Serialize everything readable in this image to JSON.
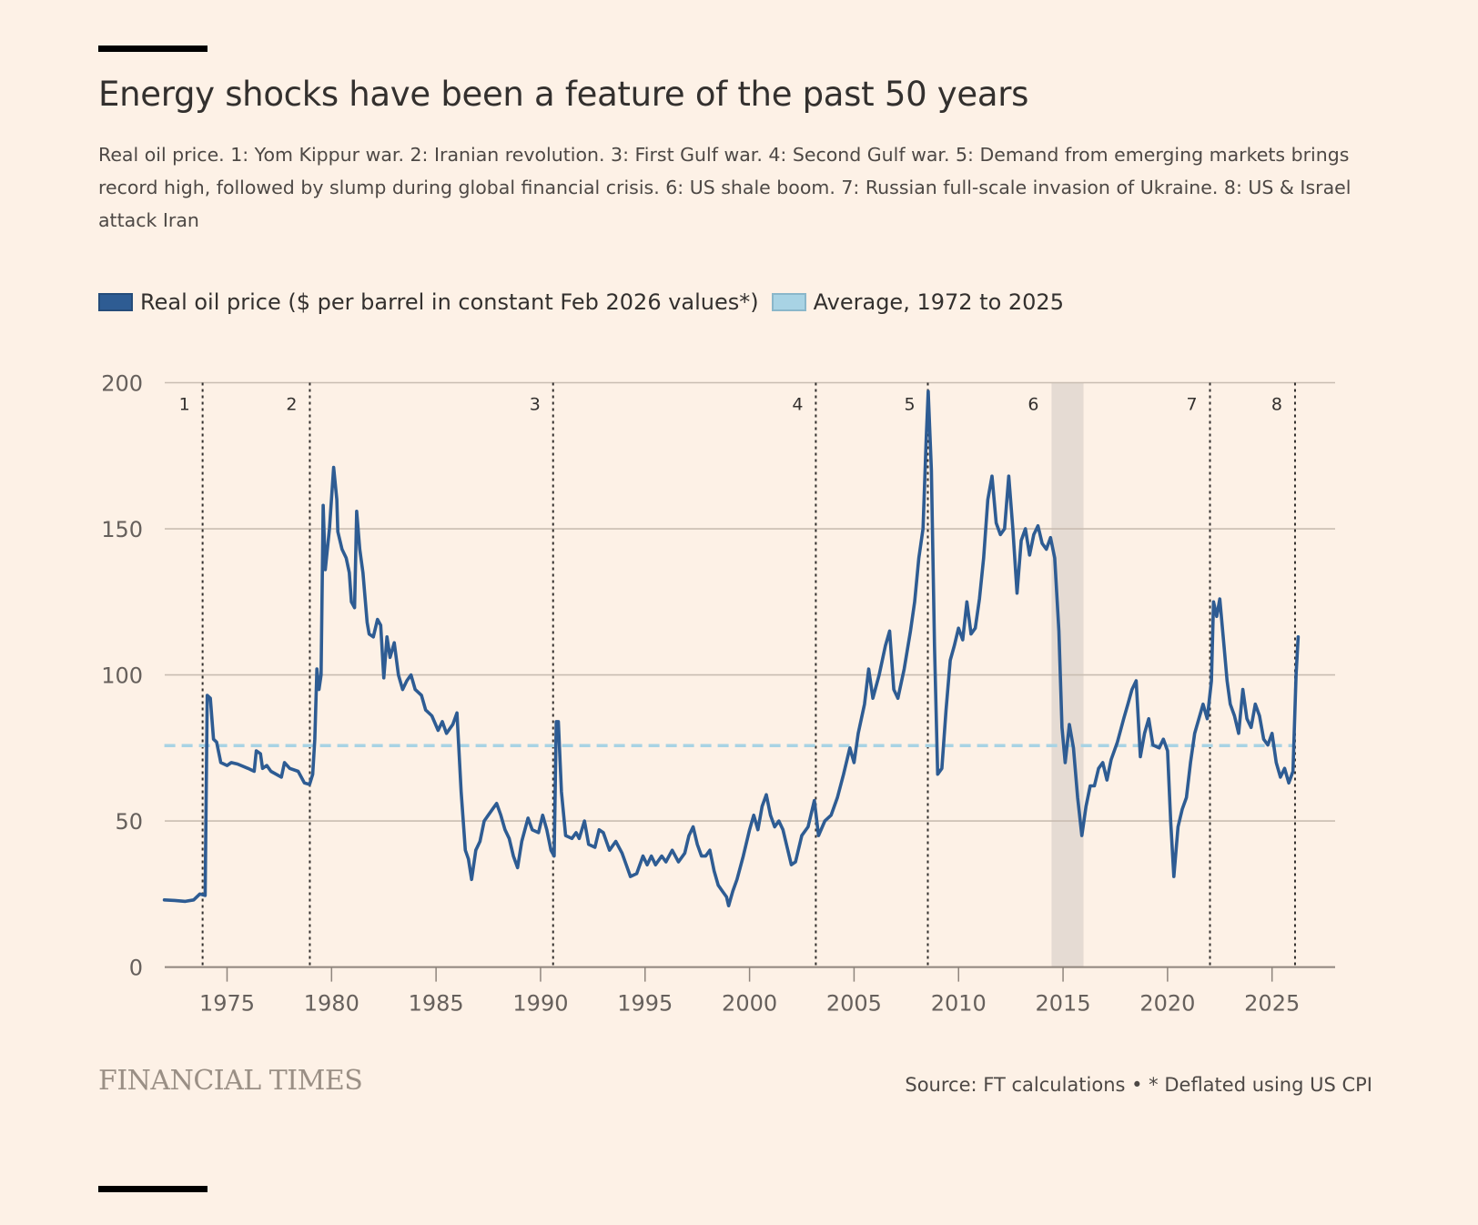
{
  "header": {
    "title": "Energy shocks have been a feature of the past 50 years",
    "subtitle": "Real oil price. 1: Yom Kippur war. 2: Iranian revolution. 3: First Gulf war. 4: Second Gulf war. 5: Demand from emerging markets brings record high, followed by slump during global financial crisis. 6: US shale boom. 7: Russian full-scale invasion of Ukraine. 8: US & Israel attack Iran"
  },
  "legend": {
    "items": [
      {
        "label": "Real oil price ($ per barrel in constant Feb 2026 values*)",
        "color": "#2e5c93"
      },
      {
        "label": "Average, 1972 to 2025",
        "color": "#a8d3e4"
      }
    ]
  },
  "footer": {
    "brand": "FINANCIAL TIMES",
    "source": "Source: FT calculations • * Deflated using US CPI"
  },
  "colors": {
    "background": "#fdf1e6",
    "line": "#2e5c93",
    "average": "#a8d3e4",
    "grid": "#c9bdb2",
    "axis": "#8f857d",
    "event_line": "#33302e",
    "shade": "#e5dbd3"
  },
  "chart_data": {
    "type": "line",
    "title": "Energy shocks have been a feature of the past 50 years",
    "xlabel": "",
    "ylabel": "",
    "xlim": [
      1972,
      2028
    ],
    "ylim": [
      0,
      200
    ],
    "yticks": [
      0,
      50,
      100,
      150,
      200
    ],
    "xticks": [
      1975,
      1980,
      1985,
      1990,
      1995,
      2000,
      2005,
      2010,
      2015,
      2020,
      2025
    ],
    "grid": true,
    "legend_position": "top-left",
    "average": {
      "name": "Average, 1972 to 2025",
      "value": 75.8
    },
    "events": [
      {
        "label": "1",
        "x": 1973.83
      },
      {
        "label": "2",
        "x": 1978.96
      },
      {
        "label": "3",
        "x": 1990.6
      },
      {
        "label": "4",
        "x": 2003.17
      },
      {
        "label": "5",
        "x": 2008.53
      },
      {
        "label": "7",
        "x": 2022.03
      },
      {
        "label": "8",
        "x": 2026.1
      }
    ],
    "shaded_periods": [
      {
        "label": "6",
        "start": 2014.45,
        "end": 2015.98
      }
    ],
    "series": [
      {
        "name": "Real oil price ($ per barrel in constant Feb 2026 values*)",
        "points": [
          [
            1972.0,
            23
          ],
          [
            1972.5,
            22.8
          ],
          [
            1973.0,
            22.5
          ],
          [
            1973.4,
            23
          ],
          [
            1973.7,
            25
          ],
          [
            1973.95,
            24.5
          ],
          [
            1974.05,
            93
          ],
          [
            1974.2,
            92
          ],
          [
            1974.35,
            78
          ],
          [
            1974.5,
            77
          ],
          [
            1974.7,
            70
          ],
          [
            1975.0,
            69
          ],
          [
            1975.2,
            70
          ],
          [
            1975.5,
            69.5
          ],
          [
            1976.0,
            68
          ],
          [
            1976.3,
            67
          ],
          [
            1976.4,
            74
          ],
          [
            1976.6,
            73
          ],
          [
            1976.7,
            68
          ],
          [
            1976.9,
            69
          ],
          [
            1977.1,
            67
          ],
          [
            1977.6,
            65
          ],
          [
            1977.75,
            70
          ],
          [
            1978.0,
            68
          ],
          [
            1978.4,
            67
          ],
          [
            1978.7,
            63
          ],
          [
            1978.95,
            62.5
          ],
          [
            1979.1,
            66
          ],
          [
            1979.2,
            78
          ],
          [
            1979.3,
            102
          ],
          [
            1979.4,
            95
          ],
          [
            1979.5,
            100
          ],
          [
            1979.6,
            158
          ],
          [
            1979.7,
            136
          ],
          [
            1979.9,
            150
          ],
          [
            1980.1,
            171
          ],
          [
            1980.25,
            160
          ],
          [
            1980.3,
            149
          ],
          [
            1980.5,
            143
          ],
          [
            1980.7,
            140
          ],
          [
            1980.85,
            135
          ],
          [
            1980.95,
            125
          ],
          [
            1981.1,
            123
          ],
          [
            1981.2,
            156
          ],
          [
            1981.35,
            143
          ],
          [
            1981.5,
            135
          ],
          [
            1981.7,
            118
          ],
          [
            1981.8,
            114
          ],
          [
            1982.0,
            113
          ],
          [
            1982.2,
            119
          ],
          [
            1982.35,
            117
          ],
          [
            1982.5,
            99
          ],
          [
            1982.65,
            113
          ],
          [
            1982.8,
            106
          ],
          [
            1983.0,
            111
          ],
          [
            1983.2,
            100
          ],
          [
            1983.4,
            95
          ],
          [
            1983.6,
            98
          ],
          [
            1983.8,
            100
          ],
          [
            1984.0,
            95
          ],
          [
            1984.3,
            93
          ],
          [
            1984.5,
            88
          ],
          [
            1984.8,
            86
          ],
          [
            1985.1,
            81
          ],
          [
            1985.3,
            84
          ],
          [
            1985.5,
            80
          ],
          [
            1985.8,
            83
          ],
          [
            1986.0,
            87
          ],
          [
            1986.2,
            60
          ],
          [
            1986.4,
            40
          ],
          [
            1986.55,
            37
          ],
          [
            1986.7,
            30
          ],
          [
            1986.9,
            40
          ],
          [
            1987.1,
            43
          ],
          [
            1987.3,
            50
          ],
          [
            1987.5,
            52
          ],
          [
            1987.7,
            54
          ],
          [
            1987.9,
            56
          ],
          [
            1988.1,
            52
          ],
          [
            1988.3,
            47
          ],
          [
            1988.5,
            44
          ],
          [
            1988.7,
            38
          ],
          [
            1988.9,
            34
          ],
          [
            1989.1,
            43
          ],
          [
            1989.4,
            51
          ],
          [
            1989.6,
            47
          ],
          [
            1989.9,
            46
          ],
          [
            1990.1,
            52
          ],
          [
            1990.3,
            47
          ],
          [
            1990.5,
            40
          ],
          [
            1990.65,
            38
          ],
          [
            1990.75,
            84
          ],
          [
            1990.85,
            84
          ],
          [
            1991.0,
            60
          ],
          [
            1991.2,
            45
          ],
          [
            1991.5,
            44
          ],
          [
            1991.7,
            46
          ],
          [
            1991.85,
            44
          ],
          [
            1992.1,
            50
          ],
          [
            1992.3,
            42
          ],
          [
            1992.6,
            41
          ],
          [
            1992.8,
            47
          ],
          [
            1993.0,
            46
          ],
          [
            1993.3,
            40
          ],
          [
            1993.6,
            43
          ],
          [
            1993.9,
            39
          ],
          [
            1994.1,
            35
          ],
          [
            1994.3,
            31
          ],
          [
            1994.6,
            32
          ],
          [
            1994.9,
            38
          ],
          [
            1995.1,
            35
          ],
          [
            1995.3,
            38
          ],
          [
            1995.5,
            35
          ],
          [
            1995.8,
            38
          ],
          [
            1996.0,
            36
          ],
          [
            1996.3,
            40
          ],
          [
            1996.6,
            36
          ],
          [
            1996.9,
            39
          ],
          [
            1997.1,
            45
          ],
          [
            1997.3,
            48
          ],
          [
            1997.5,
            42
          ],
          [
            1997.7,
            38
          ],
          [
            1997.9,
            38
          ],
          [
            1998.1,
            40
          ],
          [
            1998.3,
            33
          ],
          [
            1998.5,
            28
          ],
          [
            1998.7,
            26
          ],
          [
            1998.9,
            24
          ],
          [
            1999.0,
            21
          ],
          [
            1999.2,
            26
          ],
          [
            1999.4,
            30
          ],
          [
            1999.7,
            38
          ],
          [
            2000.0,
            47
          ],
          [
            2000.2,
            52
          ],
          [
            2000.4,
            47
          ],
          [
            2000.6,
            55
          ],
          [
            2000.8,
            59
          ],
          [
            2001.0,
            52
          ],
          [
            2001.2,
            48
          ],
          [
            2001.4,
            50
          ],
          [
            2001.6,
            47
          ],
          [
            2001.8,
            41
          ],
          [
            2002.0,
            35
          ],
          [
            2002.2,
            36
          ],
          [
            2002.5,
            45
          ],
          [
            2002.8,
            48
          ],
          [
            2003.1,
            57
          ],
          [
            2003.3,
            45
          ],
          [
            2003.6,
            50
          ],
          [
            2003.9,
            52
          ],
          [
            2004.2,
            58
          ],
          [
            2004.5,
            66
          ],
          [
            2004.8,
            75
          ],
          [
            2005.0,
            70
          ],
          [
            2005.2,
            80
          ],
          [
            2005.5,
            90
          ],
          [
            2005.7,
            102
          ],
          [
            2005.9,
            92
          ],
          [
            2006.2,
            100
          ],
          [
            2006.5,
            110
          ],
          [
            2006.7,
            115
          ],
          [
            2006.9,
            95
          ],
          [
            2007.1,
            92
          ],
          [
            2007.4,
            102
          ],
          [
            2007.7,
            115
          ],
          [
            2007.9,
            125
          ],
          [
            2008.1,
            140
          ],
          [
            2008.3,
            150
          ],
          [
            2008.45,
            180
          ],
          [
            2008.55,
            197
          ],
          [
            2008.7,
            170
          ],
          [
            2008.85,
            110
          ],
          [
            2009.0,
            66
          ],
          [
            2009.2,
            68
          ],
          [
            2009.4,
            88
          ],
          [
            2009.6,
            105
          ],
          [
            2009.8,
            110
          ],
          [
            2010.0,
            116
          ],
          [
            2010.2,
            112
          ],
          [
            2010.4,
            125
          ],
          [
            2010.6,
            114
          ],
          [
            2010.8,
            116
          ],
          [
            2011.0,
            126
          ],
          [
            2011.2,
            140
          ],
          [
            2011.4,
            160
          ],
          [
            2011.6,
            168
          ],
          [
            2011.8,
            152
          ],
          [
            2012.0,
            148
          ],
          [
            2012.2,
            150
          ],
          [
            2012.4,
            168
          ],
          [
            2012.6,
            150
          ],
          [
            2012.8,
            128
          ],
          [
            2013.0,
            146
          ],
          [
            2013.2,
            150
          ],
          [
            2013.4,
            141
          ],
          [
            2013.6,
            148
          ],
          [
            2013.8,
            151
          ],
          [
            2014.0,
            145
          ],
          [
            2014.2,
            143
          ],
          [
            2014.4,
            147
          ],
          [
            2014.6,
            140
          ],
          [
            2014.8,
            115
          ],
          [
            2014.95,
            82
          ],
          [
            2015.1,
            70
          ],
          [
            2015.3,
            83
          ],
          [
            2015.5,
            75
          ],
          [
            2015.7,
            58
          ],
          [
            2015.9,
            45
          ],
          [
            2016.1,
            55
          ],
          [
            2016.3,
            62
          ],
          [
            2016.5,
            62
          ],
          [
            2016.7,
            68
          ],
          [
            2016.9,
            70
          ],
          [
            2017.1,
            64
          ],
          [
            2017.3,
            71
          ],
          [
            2017.6,
            77
          ],
          [
            2017.9,
            85
          ],
          [
            2018.1,
            90
          ],
          [
            2018.3,
            95
          ],
          [
            2018.5,
            98
          ],
          [
            2018.7,
            72
          ],
          [
            2018.9,
            80
          ],
          [
            2019.1,
            85
          ],
          [
            2019.3,
            76
          ],
          [
            2019.6,
            75
          ],
          [
            2019.8,
            78
          ],
          [
            2020.0,
            74
          ],
          [
            2020.15,
            50
          ],
          [
            2020.3,
            31
          ],
          [
            2020.5,
            48
          ],
          [
            2020.7,
            54
          ],
          [
            2020.9,
            58
          ],
          [
            2021.1,
            70
          ],
          [
            2021.3,
            80
          ],
          [
            2021.5,
            85
          ],
          [
            2021.7,
            90
          ],
          [
            2021.9,
            85
          ],
          [
            2022.1,
            98
          ],
          [
            2022.2,
            125
          ],
          [
            2022.35,
            120
          ],
          [
            2022.5,
            126
          ],
          [
            2022.7,
            110
          ],
          [
            2022.85,
            98
          ],
          [
            2023.0,
            90
          ],
          [
            2023.2,
            86
          ],
          [
            2023.4,
            80
          ],
          [
            2023.6,
            95
          ],
          [
            2023.8,
            85
          ],
          [
            2024.0,
            82
          ],
          [
            2024.2,
            90
          ],
          [
            2024.4,
            86
          ],
          [
            2024.6,
            78
          ],
          [
            2024.8,
            76
          ],
          [
            2025.0,
            80
          ],
          [
            2025.2,
            70
          ],
          [
            2025.4,
            65
          ],
          [
            2025.6,
            68
          ],
          [
            2025.8,
            63
          ],
          [
            2026.0,
            67
          ],
          [
            2026.15,
            100
          ],
          [
            2026.25,
            113
          ]
        ]
      }
    ]
  }
}
